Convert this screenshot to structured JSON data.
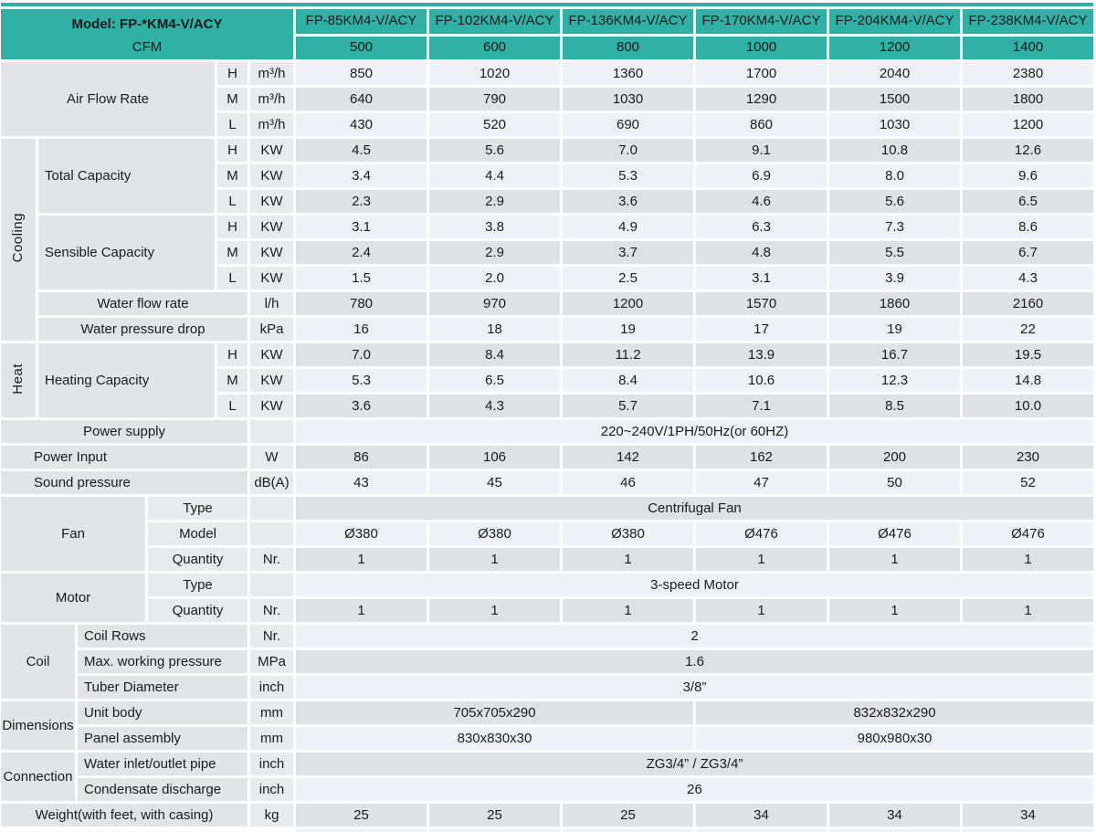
{
  "table": {
    "model_header": "Model: FP-*KM4-V/ACY",
    "cfm_label": "CFM",
    "models": [
      "FP-85KM4-V/ACY",
      "FP-102KM4-V/ACY",
      "FP-136KM4-V/ACY",
      "FP-170KM4-V/ACY",
      "FP-204KM4-V/ACY",
      "FP-238KM4-V/ACY"
    ],
    "cfm": [
      "500",
      "600",
      "800",
      "1000",
      "1200",
      "1400"
    ],
    "speeds": [
      "H",
      "M",
      "L"
    ],
    "air_flow_rate": {
      "label": "Air Flow Rate",
      "unit": "m³/h",
      "h": [
        "850",
        "1020",
        "1360",
        "1700",
        "2040",
        "2380"
      ],
      "m": [
        "640",
        "790",
        "1030",
        "1290",
        "1500",
        "1800"
      ],
      "l": [
        "430",
        "520",
        "690",
        "860",
        "1030",
        "1200"
      ]
    },
    "cooling": {
      "group": "Cooling",
      "total_capacity": {
        "label": "Total Capacity",
        "unit": "KW",
        "h": [
          "4.5",
          "5.6",
          "7.0",
          "9.1",
          "10.8",
          "12.6"
        ],
        "m": [
          "3.4",
          "4.4",
          "5.3",
          "6.9",
          "8.0",
          "9.6"
        ],
        "l": [
          "2.3",
          "2.9",
          "3.6",
          "4.6",
          "5.6",
          "6.5"
        ]
      },
      "sensible_capacity": {
        "label": "Sensible Capacity",
        "unit": "KW",
        "h": [
          "3.1",
          "3.8",
          "4.9",
          "6.3",
          "7.3",
          "8.6"
        ],
        "m": [
          "2.4",
          "2.9",
          "3.7",
          "4.8",
          "5.5",
          "6.7"
        ],
        "l": [
          "1.5",
          "2.0",
          "2.5",
          "3.1",
          "3.9",
          "4.3"
        ]
      },
      "water_flow_rate": {
        "label": "Water flow rate",
        "unit": "l/h",
        "values": [
          "780",
          "970",
          "1200",
          "1570",
          "1860",
          "2160"
        ]
      },
      "water_pressure_drop": {
        "label": "Water pressure drop",
        "unit": "kPa",
        "values": [
          "16",
          "18",
          "19",
          "17",
          "19",
          "22"
        ]
      }
    },
    "heat": {
      "group": "Heat",
      "heating_capacity": {
        "label": "Heating Capacity",
        "unit": "KW",
        "h": [
          "7.0",
          "8.4",
          "11.2",
          "13.9",
          "16.7",
          "19.5"
        ],
        "m": [
          "5.3",
          "6.5",
          "8.4",
          "10.6",
          "12.3",
          "14.8"
        ],
        "l": [
          "3.6",
          "4.3",
          "5.7",
          "7.1",
          "8.5",
          "10.0"
        ]
      }
    },
    "power_supply": {
      "label": "Power supply",
      "value": "220~240V/1PH/50Hz(or 60HZ)"
    },
    "power_input": {
      "label": "Power Input",
      "unit": "W",
      "values": [
        "86",
        "106",
        "142",
        "162",
        "200",
        "230"
      ]
    },
    "sound_pressure": {
      "label": "Sound pressure",
      "unit": "dB(A)",
      "values": [
        "43",
        "45",
        "46",
        "47",
        "50",
        "52"
      ]
    },
    "fan": {
      "group": "Fan",
      "type_label": "Type",
      "type_value": "Centrifugal Fan",
      "model_label": "Model",
      "model_values": [
        "Ø380",
        "Ø380",
        "Ø380",
        "Ø476",
        "Ø476",
        "Ø476"
      ],
      "quantity_label": "Quantity",
      "quantity_unit": "Nr.",
      "quantity_values": [
        "1",
        "1",
        "1",
        "1",
        "1",
        "1"
      ]
    },
    "motor": {
      "group": "Motor",
      "type_label": "Type",
      "type_value": "3-speed Motor",
      "quantity_label": "Quantity",
      "quantity_unit": "Nr.",
      "quantity_values": [
        "1",
        "1",
        "1",
        "1",
        "1",
        "1"
      ]
    },
    "coil": {
      "group": "Coil",
      "coil_rows": {
        "label": "Coil Rows",
        "unit": "Nr.",
        "value": "2"
      },
      "max_working_pressure": {
        "label": "Max. working pressure",
        "unit": "MPa",
        "value": "1.6"
      },
      "tuber_diameter": {
        "label": "Tuber Diameter",
        "unit": "inch",
        "value": "3/8”"
      }
    },
    "dimensions": {
      "group": "Dimensions",
      "unit_body": {
        "label": "Unit body",
        "unit": "mm",
        "left": "705x705x290",
        "right": "832x832x290"
      },
      "panel_assembly": {
        "label": "Panel assembly",
        "unit": "mm",
        "left": "830x830x30",
        "right": "980x980x30"
      }
    },
    "connection": {
      "group": "Connection",
      "water_pipe": {
        "label": "Water inlet/outlet pipe",
        "unit": "inch",
        "value": "ZG3/4” / ZG3/4”"
      },
      "condensate": {
        "label": "Condensate discharge",
        "unit": "inch",
        "value": "26"
      }
    },
    "weight": {
      "label": "Weight(with feet, with casing)",
      "unit": "kg",
      "values": [
        "25",
        "25",
        "25",
        "34",
        "34",
        "34"
      ]
    }
  },
  "colors": {
    "accent_teal": "#31b0a6",
    "row_light": "#eef2f6",
    "row_gray": "#e0e1e5",
    "label_bg": "#e3e4e8"
  }
}
